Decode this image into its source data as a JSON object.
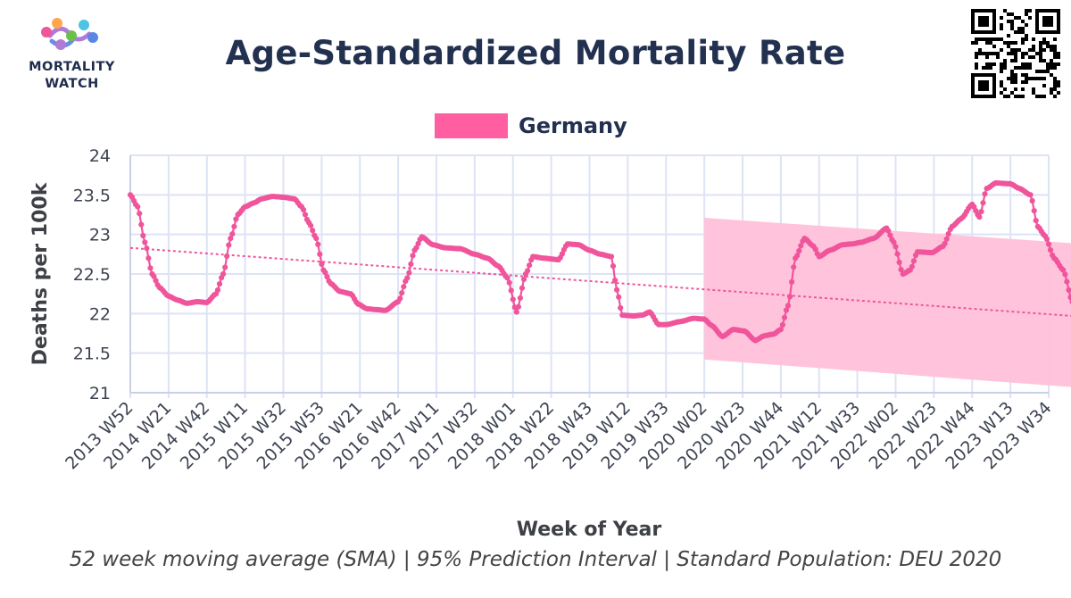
{
  "header": {
    "logo_line1": "MORTALITY",
    "logo_line2": "WATCH",
    "title": "Age-Standardized Mortality Rate"
  },
  "legend": {
    "label": "Germany",
    "color": "#ff5fa0"
  },
  "caption": "52 week moving average (SMA) | 95% Prediction Interval | Standard Population: DEU 2020",
  "colors": {
    "series": "#f0559b",
    "trend": "#f0559b",
    "band": "#ffc1d9",
    "grid": "#dde3f5",
    "axis_text": "#3d4452",
    "title": "#233150"
  },
  "chart_data": {
    "type": "line",
    "title": "Age-Standardized Mortality Rate",
    "xlabel": "Week of Year",
    "ylabel": "Deaths per 100k",
    "ylim": [
      21,
      24
    ],
    "yticks": [
      21,
      21.5,
      22,
      22.5,
      23,
      23.5,
      24
    ],
    "x_index_range": [
      0,
      504
    ],
    "x_tick_labels": [
      "2013 W52",
      "2014 W21",
      "2014 W42",
      "2015 W11",
      "2015 W32",
      "2015 W53",
      "2016 W21",
      "2016 W42",
      "2017 W11",
      "2017 W32",
      "2018 W01",
      "2018 W22",
      "2018 W43",
      "2019 W12",
      "2019 W33",
      "2020 W02",
      "2020 W23",
      "2020 W44",
      "2021 W12",
      "2021 W33",
      "2022 W02",
      "2022 W23",
      "2022 W44",
      "2023 W13",
      "2023 W34"
    ],
    "grid": true,
    "legend_position": "top-center",
    "series": [
      {
        "name": "Germany",
        "kind": "52 week moving average (SMA)",
        "keypoints": [
          [
            "2013 W52",
            23.5
          ],
          [
            "2014 W04",
            23.35
          ],
          [
            "2014 W08",
            22.9
          ],
          [
            "2014 W12",
            22.5
          ],
          [
            "2014 W16",
            22.33
          ],
          [
            "2014 W21",
            22.22
          ],
          [
            "2014 W26",
            22.17
          ],
          [
            "2014 W31",
            22.13
          ],
          [
            "2014 W37",
            22.15
          ],
          [
            "2014 W42",
            22.14
          ],
          [
            "2014 W47",
            22.25
          ],
          [
            "2014 W51",
            22.5
          ],
          [
            "2015 W03",
            22.95
          ],
          [
            "2015 W07",
            23.25
          ],
          [
            "2015 W11",
            23.35
          ],
          [
            "2015 W16",
            23.4
          ],
          [
            "2015 W20",
            23.45
          ],
          [
            "2015 W26",
            23.48
          ],
          [
            "2015 W32",
            23.47
          ],
          [
            "2015 W38",
            23.45
          ],
          [
            "2015 W42",
            23.35
          ],
          [
            "2015 W46",
            23.15
          ],
          [
            "2015 W50",
            22.95
          ],
          [
            "2016 W01",
            22.55
          ],
          [
            "2016 W05",
            22.38
          ],
          [
            "2016 W10",
            22.28
          ],
          [
            "2016 W16",
            22.25
          ],
          [
            "2016 W20",
            22.12
          ],
          [
            "2016 W25",
            22.06
          ],
          [
            "2016 W30",
            22.05
          ],
          [
            "2016 W35",
            22.04
          ],
          [
            "2016 W42",
            22.15
          ],
          [
            "2016 W47",
            22.45
          ],
          [
            "2016 W51",
            22.8
          ],
          [
            "2017 W03",
            22.97
          ],
          [
            "2017 W09",
            22.87
          ],
          [
            "2017 W16",
            22.83
          ],
          [
            "2017 W24",
            22.82
          ],
          [
            "2017 W32",
            22.75
          ],
          [
            "2017 W39",
            22.7
          ],
          [
            "2017 W45",
            22.6
          ],
          [
            "2017 W50",
            22.45
          ],
          [
            "2018 W03",
            22.02
          ],
          [
            "2018 W08",
            22.5
          ],
          [
            "2018 W12",
            22.72
          ],
          [
            "2018 W18",
            22.7
          ],
          [
            "2018 W26",
            22.68
          ],
          [
            "2018 W31",
            22.88
          ],
          [
            "2018 W37",
            22.87
          ],
          [
            "2018 W43",
            22.8
          ],
          [
            "2018 W49",
            22.75
          ],
          [
            "2019 W03",
            22.72
          ],
          [
            "2019 W06",
            22.3
          ],
          [
            "2019 W09",
            21.98
          ],
          [
            "2019 W15",
            21.97
          ],
          [
            "2019 W20",
            21.98
          ],
          [
            "2019 W24",
            22.02
          ],
          [
            "2019 W29",
            21.86
          ],
          [
            "2019 W33",
            21.86
          ],
          [
            "2019 W41",
            21.9
          ],
          [
            "2019 W48",
            21.94
          ],
          [
            "2020 W02",
            21.93
          ],
          [
            "2020 W06",
            21.85
          ],
          [
            "2020 W12",
            21.71
          ],
          [
            "2020 W18",
            21.8
          ],
          [
            "2020 W24",
            21.78
          ],
          [
            "2020 W30",
            21.66
          ],
          [
            "2020 W35",
            21.72
          ],
          [
            "2020 W40",
            21.74
          ],
          [
            "2020 W44",
            21.8
          ],
          [
            "2020 W48",
            22.1
          ],
          [
            "2020 W52",
            22.7
          ],
          [
            "2021 W04",
            22.95
          ],
          [
            "2021 W09",
            22.85
          ],
          [
            "2021 W12",
            22.72
          ],
          [
            "2021 W18",
            22.8
          ],
          [
            "2021 W25",
            22.87
          ],
          [
            "2021 W30",
            22.88
          ],
          [
            "2021 W35",
            22.9
          ],
          [
            "2021 W42",
            22.95
          ],
          [
            "2021 W49",
            23.08
          ],
          [
            "2022 W01",
            22.9
          ],
          [
            "2022 W06",
            22.5
          ],
          [
            "2022 W10",
            22.55
          ],
          [
            "2022 W14",
            22.78
          ],
          [
            "2022 W22",
            22.77
          ],
          [
            "2022 W28",
            22.85
          ],
          [
            "2022 W33",
            23.1
          ],
          [
            "2022 W38",
            23.2
          ],
          [
            "2022 W44",
            23.38
          ],
          [
            "2022 W48",
            23.22
          ],
          [
            "2022 W52",
            23.58
          ],
          [
            "2023 W05",
            23.65
          ],
          [
            "2023 W13",
            23.64
          ],
          [
            "2023 W18",
            23.58
          ],
          [
            "2023 W24",
            23.5
          ],
          [
            "2023 W28",
            23.1
          ],
          [
            "2023 W32",
            22.98
          ],
          [
            "2023 W37",
            22.7
          ],
          [
            "2023 W42",
            22.55
          ],
          [
            "2023 W47",
            22.15
          ]
        ]
      },
      {
        "name": "Germany",
        "kind": "linear trend",
        "keypoints": [
          [
            "2013 W52",
            22.83
          ],
          [
            "2023 W47",
            21.97
          ]
        ]
      }
    ],
    "prediction_interval": {
      "name": "95% Prediction Interval",
      "start": "2020 W02",
      "end": "2023 W47",
      "upper": [
        23.21,
        22.89
      ],
      "lower": [
        21.42,
        21.07
      ]
    }
  }
}
